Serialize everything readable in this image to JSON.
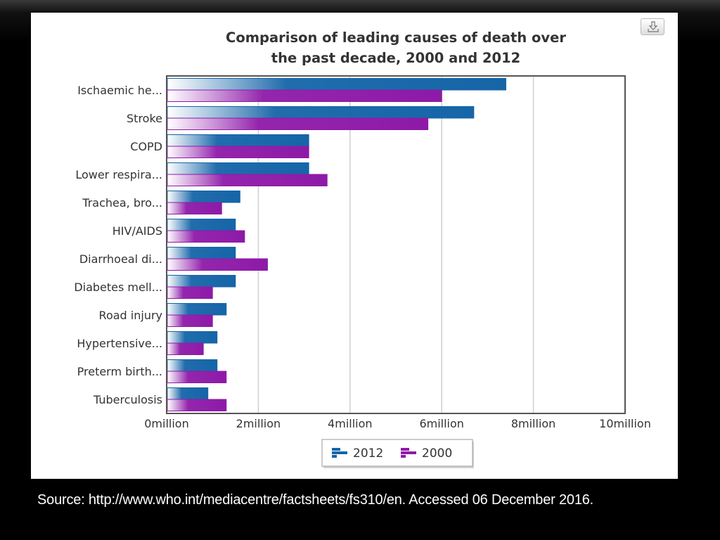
{
  "chart_data": {
    "type": "bar",
    "orientation": "horizontal",
    "title": [
      "Comparison of leading causes of death over",
      "the past decade, 2000 and 2012"
    ],
    "categories": [
      "Ischaemic he...",
      "Stroke",
      "COPD",
      "Lower respira...",
      "Trachea, bro...",
      "HIV/AIDS",
      "Diarrhoeal di...",
      "Diabetes mell...",
      "Road injury",
      "Hypertensive...",
      "Preterm birth...",
      "Tuberculosis"
    ],
    "series": [
      {
        "name": "2012",
        "values": [
          7.4,
          6.7,
          3.1,
          3.1,
          1.6,
          1.5,
          1.5,
          1.5,
          1.3,
          1.1,
          1.1,
          0.9
        ]
      },
      {
        "name": "2000",
        "values": [
          6.0,
          5.7,
          3.1,
          3.5,
          1.2,
          1.7,
          2.2,
          1.0,
          1.0,
          0.8,
          1.3,
          1.3
        ]
      }
    ],
    "xlim": [
      0,
      10
    ],
    "xticks": [
      0,
      2,
      4,
      6,
      8,
      10
    ],
    "xtick_labels": [
      "0million",
      "2million",
      "4million",
      "6million",
      "8million",
      "10million"
    ],
    "xlabel": "",
    "ylabel": "",
    "grid": "vertical",
    "legend": "bottom-center",
    "colors": {
      "2012": "#1565a8",
      "2000": "#8e1aa8"
    }
  },
  "source": "Source:  http://www.who.int/mediacentre/factsheets/fs310/en.  Accessed 06 December 2016.",
  "export_icon": "download-icon"
}
